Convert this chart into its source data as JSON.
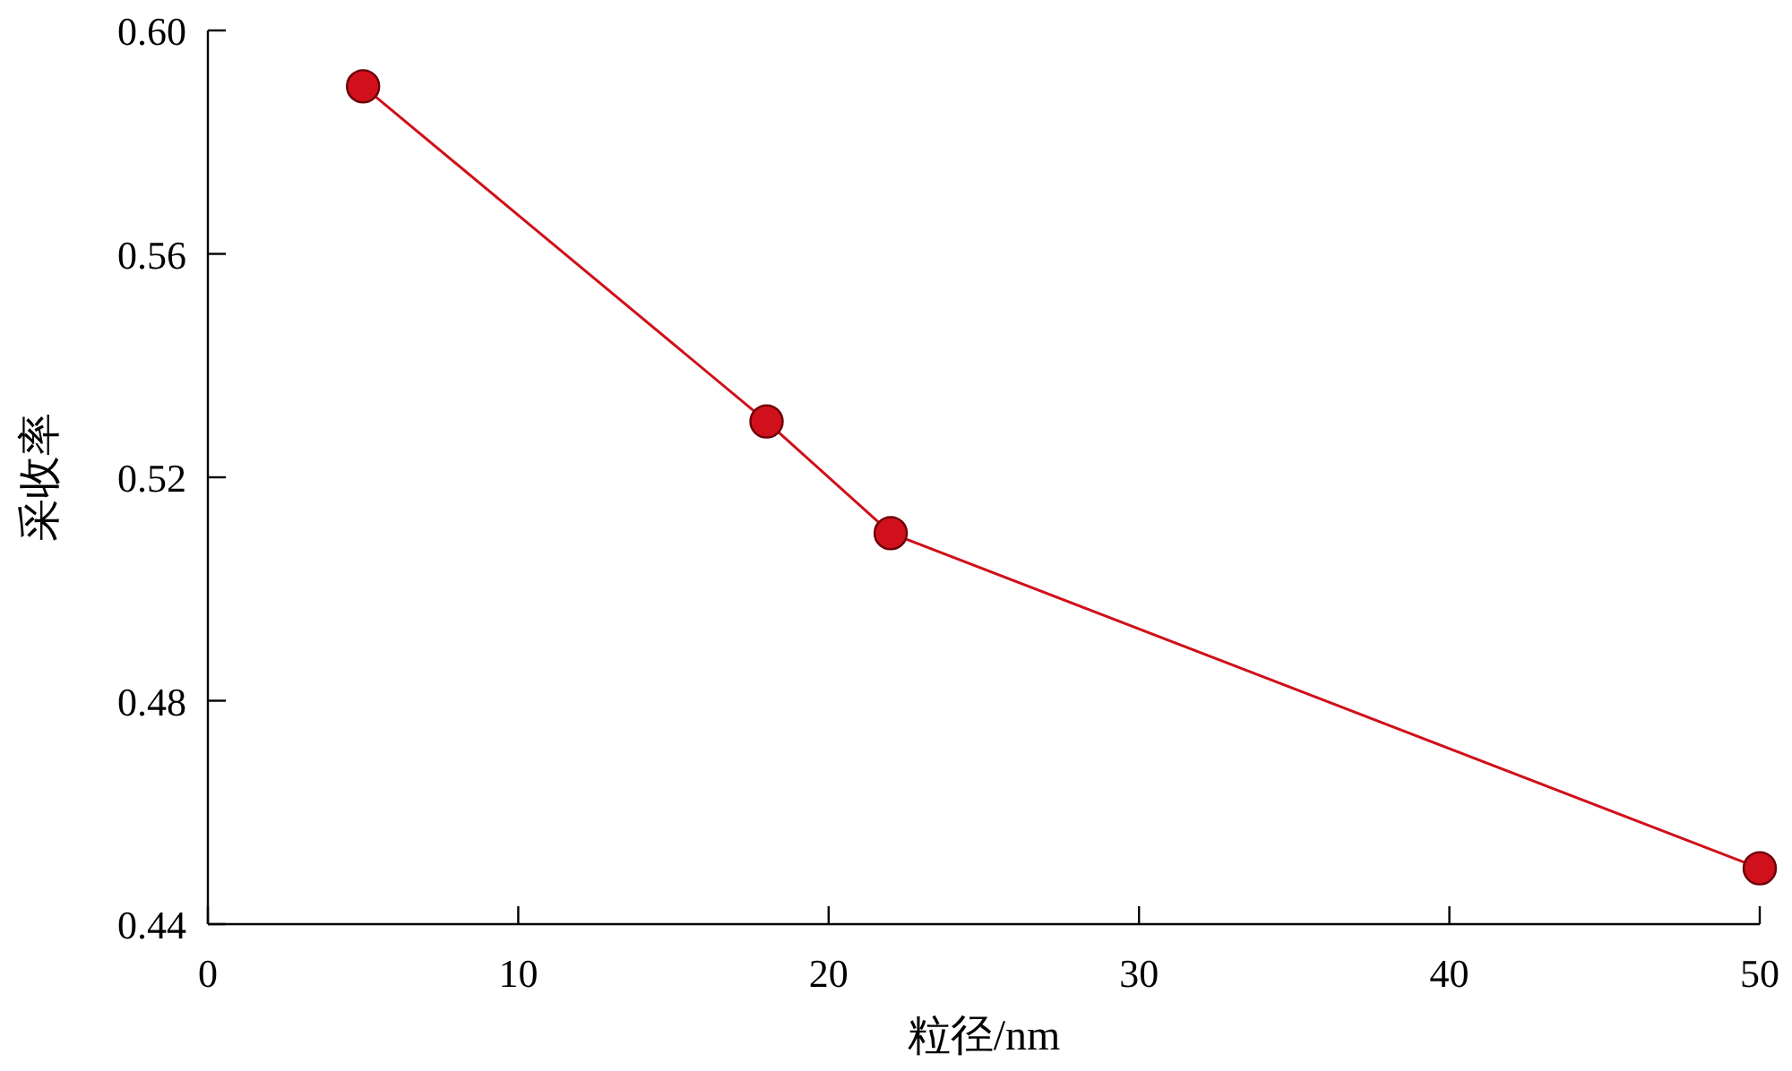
{
  "chart_data": {
    "type": "line",
    "xlabel": "粒径/nm",
    "ylabel": "采收率",
    "x": [
      5,
      18,
      22,
      50
    ],
    "series": [
      {
        "color": "#d0101a",
        "values": [
          0.59,
          0.53,
          0.51,
          0.45
        ]
      }
    ],
    "xlim": [
      0,
      50
    ],
    "xticks": [
      0,
      10,
      20,
      30,
      40,
      50
    ],
    "ylim": [
      0.44,
      0.6
    ],
    "yticks": [
      {
        "value": 0.44,
        "label": "0.44"
      },
      0.48,
      0.52,
      0.56,
      {
        "value": 0.6,
        "label": "0.60"
      }
    ],
    "marker": "circle",
    "line_style": "solid",
    "grid": false
  }
}
